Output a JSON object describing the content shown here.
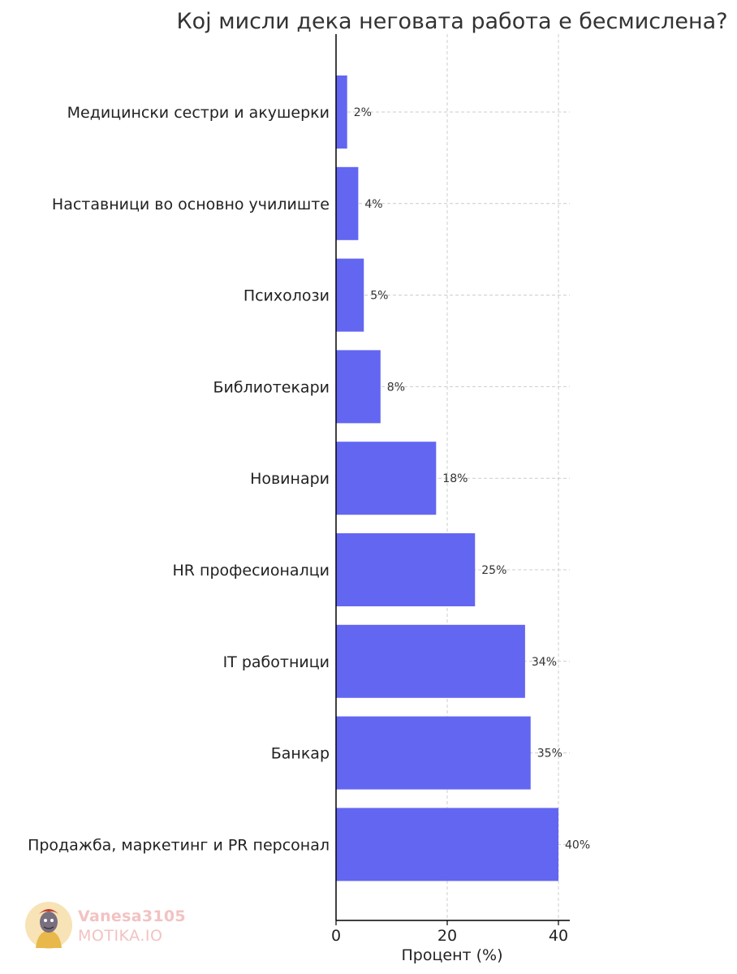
{
  "chart_data": {
    "type": "bar",
    "orientation": "horizontal",
    "title": "Кој мисли дека неговата работа е бесмислена?",
    "xlabel": "Процент (%)",
    "ylabel": "",
    "xlim": [
      0,
      42
    ],
    "xticks": [
      0,
      20,
      40
    ],
    "grid": true,
    "bar_color": "#6366f1",
    "categories": [
      "Медицински сестри и акушерки",
      "Наставници во основно училиште",
      "Психолози",
      "Библиотекари",
      "Новинари",
      "HR професионалци",
      "IT работници",
      "Банкар",
      "Продажба, маркетинг и PR персонал"
    ],
    "values": [
      2,
      4,
      5,
      8,
      18,
      25,
      34,
      35,
      40
    ],
    "data_labels": [
      "2%",
      "4%",
      "5%",
      "8%",
      "18%",
      "25%",
      "34%",
      "35%",
      "40%"
    ]
  },
  "watermark": {
    "user": "Vanesa3105",
    "site": "MOTIKA.IO"
  }
}
